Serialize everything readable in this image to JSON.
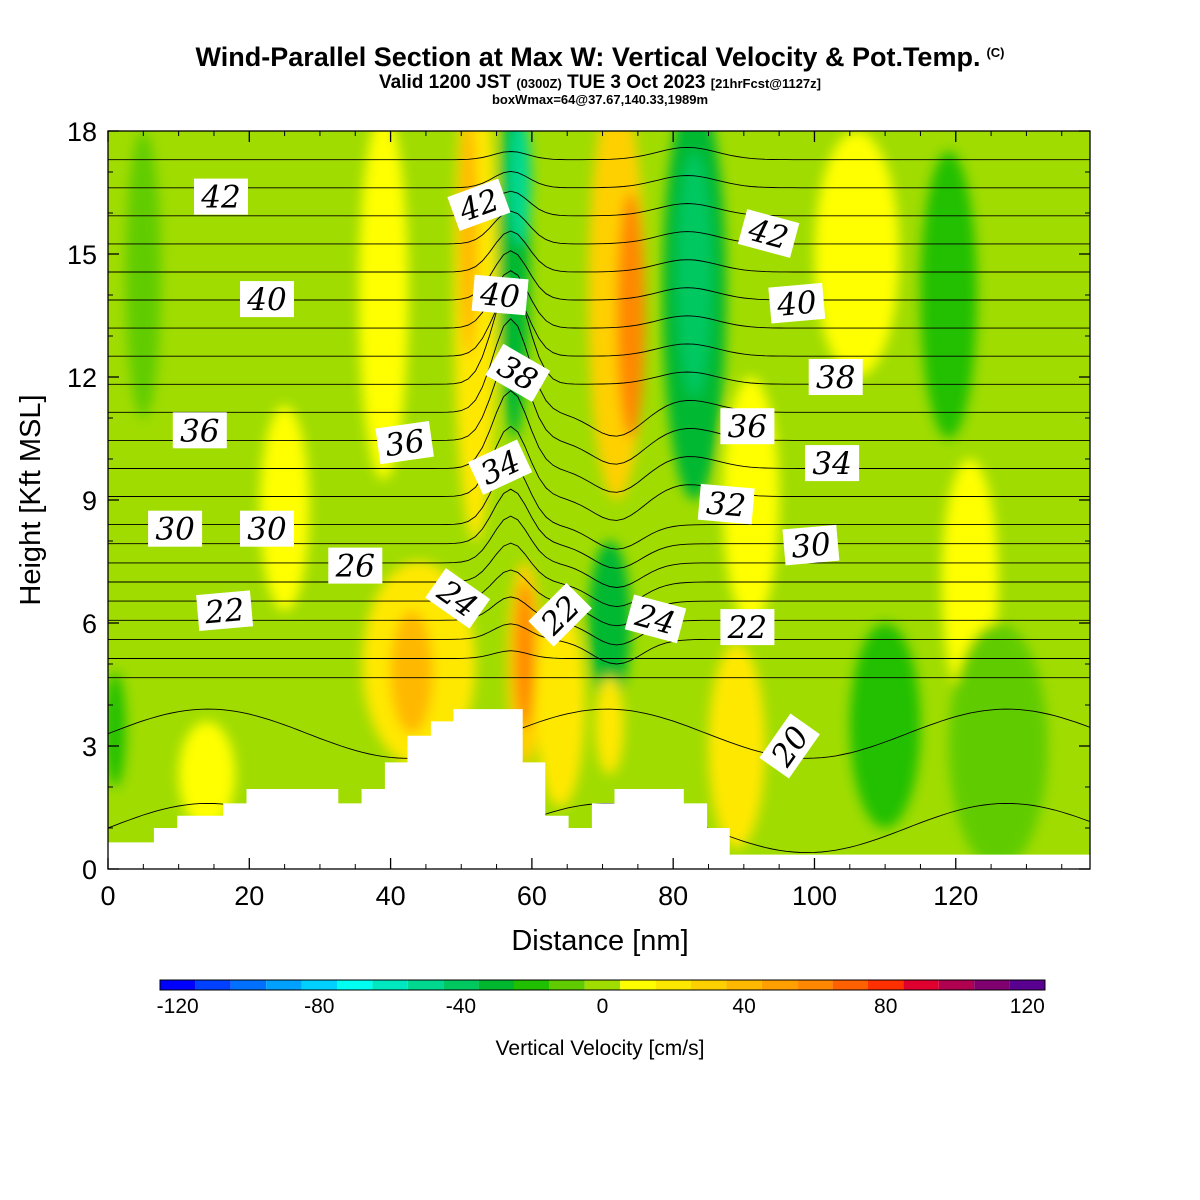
{
  "title": "Wind-Parallel Section at Max W: Vertical Velocity & Pot.Temp.",
  "title_mark": "(C)",
  "subtitle": {
    "valid_pre": "Valid 1200 JST",
    "valid_utc": "(0300Z)",
    "valid_date": "TUE 3 Oct 2023",
    "forecast": "[21hrFcst@1127z]"
  },
  "box_note": "boxWmax=64@37.67,140.33,1989m",
  "chart_data": {
    "type": "heatmap",
    "description_fields": "cross-section: filled contours of vertical velocity with potential temperature isolines",
    "xlabel": "Distance [nm]",
    "ylabel": "Height [Kft MSL]",
    "xlim": [
      0,
      139
    ],
    "ylim": [
      0,
      18
    ],
    "x_ticks": [
      0,
      20,
      40,
      60,
      80,
      100,
      120
    ],
    "y_ticks": [
      0,
      3,
      6,
      9,
      12,
      15,
      18
    ],
    "colorbar": {
      "label": "Vertical Velocity [cm/s]",
      "range": [
        -125,
        125
      ],
      "step": 10,
      "tick_labels": [
        -120,
        -80,
        -40,
        0,
        40,
        80,
        120
      ],
      "colors": [
        "#0000ff",
        "#0040ff",
        "#0070ff",
        "#00a0ff",
        "#00d0ff",
        "#00fff0",
        "#00e8c0",
        "#00d890",
        "#00c860",
        "#00b830",
        "#20c000",
        "#60cc00",
        "#a0dc00",
        "#ffff00",
        "#ffe800",
        "#ffd000",
        "#ffb800",
        "#ffa000",
        "#ff8800",
        "#ff6000",
        "#ff3000",
        "#e00030",
        "#b00050",
        "#800070",
        "#5a0090"
      ]
    },
    "terrain_top_kft": [
      {
        "x": 0,
        "y": 0.65
      },
      {
        "x": 6.5,
        "y": 0.65
      },
      {
        "x": 6.5,
        "y": 1.0
      },
      {
        "x": 9.8,
        "y": 1.0
      },
      {
        "x": 9.8,
        "y": 1.3
      },
      {
        "x": 16.3,
        "y": 1.3
      },
      {
        "x": 16.3,
        "y": 1.6
      },
      {
        "x": 19.6,
        "y": 1.6
      },
      {
        "x": 19.6,
        "y": 1.95
      },
      {
        "x": 32.6,
        "y": 1.95
      },
      {
        "x": 32.6,
        "y": 1.6
      },
      {
        "x": 35.9,
        "y": 1.6
      },
      {
        "x": 35.9,
        "y": 1.95
      },
      {
        "x": 39.2,
        "y": 1.95
      },
      {
        "x": 39.2,
        "y": 2.6
      },
      {
        "x": 42.4,
        "y": 2.6
      },
      {
        "x": 42.4,
        "y": 3.25
      },
      {
        "x": 45.7,
        "y": 3.25
      },
      {
        "x": 45.7,
        "y": 3.6
      },
      {
        "x": 48.9,
        "y": 3.6
      },
      {
        "x": 48.9,
        "y": 3.9
      },
      {
        "x": 58.7,
        "y": 3.9
      },
      {
        "x": 58.7,
        "y": 2.6
      },
      {
        "x": 61.9,
        "y": 2.6
      },
      {
        "x": 61.9,
        "y": 1.3
      },
      {
        "x": 65.2,
        "y": 1.3
      },
      {
        "x": 65.2,
        "y": 1.0
      },
      {
        "x": 68.5,
        "y": 1.0
      },
      {
        "x": 68.5,
        "y": 1.6
      },
      {
        "x": 71.7,
        "y": 1.6
      },
      {
        "x": 71.7,
        "y": 1.95
      },
      {
        "x": 81.5,
        "y": 1.95
      },
      {
        "x": 81.5,
        "y": 1.6
      },
      {
        "x": 84.8,
        "y": 1.6
      },
      {
        "x": 84.8,
        "y": 1.0
      },
      {
        "x": 88.0,
        "y": 1.0
      },
      {
        "x": 88.0,
        "y": 0.35
      },
      {
        "x": 139,
        "y": 0.35
      }
    ],
    "w_cells": [
      {
        "cx": 1,
        "cy": 3.4,
        "rx": 1.5,
        "ry": 1.4,
        "w": -20
      },
      {
        "cx": 5,
        "cy": 14.5,
        "rx": 2.5,
        "ry": 3.5,
        "w": -10
      },
      {
        "cx": 14,
        "cy": 2.3,
        "rx": 4,
        "ry": 1.3,
        "w": 8
      },
      {
        "cx": 25,
        "cy": 8.8,
        "rx": 3.5,
        "ry": 2.5,
        "w": 8
      },
      {
        "cx": 39,
        "cy": 14,
        "rx": 3.5,
        "ry": 4.5,
        "w": 10
      },
      {
        "cx": 44,
        "cy": 5,
        "rx": 8,
        "ry": 2.5,
        "w": 20
      },
      {
        "cx": 43,
        "cy": 4.8,
        "rx": 3,
        "ry": 1.5,
        "w": 40
      },
      {
        "cx": 52,
        "cy": 14,
        "rx": 3,
        "ry": 6,
        "w": 20
      },
      {
        "cx": 51,
        "cy": 15.5,
        "rx": 1.3,
        "ry": 3,
        "w": 40
      },
      {
        "cx": 57.5,
        "cy": 15,
        "rx": 2.2,
        "ry": 4.5,
        "w": -30
      },
      {
        "cx": 58.3,
        "cy": 16.8,
        "rx": 1.6,
        "ry": 1.6,
        "w": -50
      },
      {
        "cx": 59,
        "cy": 5,
        "rx": 2.5,
        "ry": 2.5,
        "w": 30
      },
      {
        "cx": 59,
        "cy": 5.2,
        "rx": 1.4,
        "ry": 1.8,
        "w": 60
      },
      {
        "cx": 64,
        "cy": 4,
        "rx": 3.5,
        "ry": 2.5,
        "w": 20
      },
      {
        "cx": 71,
        "cy": 6,
        "rx": 3,
        "ry": 2,
        "w": -30
      },
      {
        "cx": 71,
        "cy": 3.5,
        "rx": 2,
        "ry": 1.2,
        "w": 20
      },
      {
        "cx": 72,
        "cy": 14,
        "rx": 4,
        "ry": 5,
        "w": 30
      },
      {
        "cx": 74,
        "cy": 13.5,
        "rx": 2,
        "ry": 3,
        "w": 60
      },
      {
        "cx": 83,
        "cy": 14,
        "rx": 4.5,
        "ry": 5,
        "w": -30
      },
      {
        "cx": 83,
        "cy": 14.5,
        "rx": 2.5,
        "ry": 3,
        "w": -40
      },
      {
        "cx": 89,
        "cy": 3,
        "rx": 4,
        "ry": 2.5,
        "w": 20
      },
      {
        "cx": 91,
        "cy": 9,
        "rx": 4,
        "ry": 3,
        "w": 10
      },
      {
        "cx": 106,
        "cy": 15,
        "rx": 6,
        "ry": 3,
        "w": 10
      },
      {
        "cx": 110,
        "cy": 3.5,
        "rx": 5,
        "ry": 2.5,
        "w": -20
      },
      {
        "cx": 119,
        "cy": 14,
        "rx": 4,
        "ry": 3.5,
        "w": -20
      },
      {
        "cx": 122,
        "cy": 7,
        "rx": 4,
        "ry": 3,
        "w": 10
      },
      {
        "cx": 126,
        "cy": 3,
        "rx": 7,
        "ry": 3,
        "w": -10
      }
    ],
    "theta_levels": [
      20,
      21,
      22,
      23,
      24,
      25,
      26,
      27,
      28,
      29,
      30,
      31,
      32,
      33,
      34,
      35,
      36,
      37,
      38,
      39,
      40,
      41,
      42,
      43
    ],
    "theta_labels": [
      {
        "text": "42",
        "x": 16,
        "y": 16.4,
        "rot": 0
      },
      {
        "text": "40",
        "x": 22.5,
        "y": 13.9,
        "rot": 0
      },
      {
        "text": "36",
        "x": 13,
        "y": 10.7,
        "rot": 0
      },
      {
        "text": "30",
        "x": 9.5,
        "y": 8.3,
        "rot": 0
      },
      {
        "text": "30",
        "x": 22.5,
        "y": 8.3,
        "rot": 0
      },
      {
        "text": "22",
        "x": 16.5,
        "y": 6.3,
        "rot": -5
      },
      {
        "text": "26",
        "x": 35,
        "y": 7.4,
        "rot": 0
      },
      {
        "text": "36",
        "x": 42,
        "y": 10.4,
        "rot": -8
      },
      {
        "text": "24",
        "x": 49.5,
        "y": 6.6,
        "rot": 35
      },
      {
        "text": "42",
        "x": 52.5,
        "y": 16.2,
        "rot": -20
      },
      {
        "text": "40",
        "x": 55.5,
        "y": 14.0,
        "rot": 5
      },
      {
        "text": "38",
        "x": 58,
        "y": 12.1,
        "rot": 30
      },
      {
        "text": "34",
        "x": 55.5,
        "y": 9.8,
        "rot": -25
      },
      {
        "text": "22",
        "x": 64,
        "y": 6.2,
        "rot": -45
      },
      {
        "text": "24",
        "x": 77.5,
        "y": 6.1,
        "rot": 15
      },
      {
        "text": "36",
        "x": 90.5,
        "y": 10.8,
        "rot": 0
      },
      {
        "text": "32",
        "x": 87.5,
        "y": 8.9,
        "rot": 5
      },
      {
        "text": "22",
        "x": 90.5,
        "y": 5.9,
        "rot": 0
      },
      {
        "text": "42",
        "x": 93.5,
        "y": 15.5,
        "rot": 15
      },
      {
        "text": "40",
        "x": 97.5,
        "y": 13.8,
        "rot": -5
      },
      {
        "text": "38",
        "x": 103,
        "y": 12.0,
        "rot": 0
      },
      {
        "text": "34",
        "x": 102.5,
        "y": 9.9,
        "rot": 0
      },
      {
        "text": "30",
        "x": 99.5,
        "y": 7.9,
        "rot": -5
      },
      {
        "text": "20",
        "x": 96.5,
        "y": 3.0,
        "rot": -55
      }
    ]
  }
}
